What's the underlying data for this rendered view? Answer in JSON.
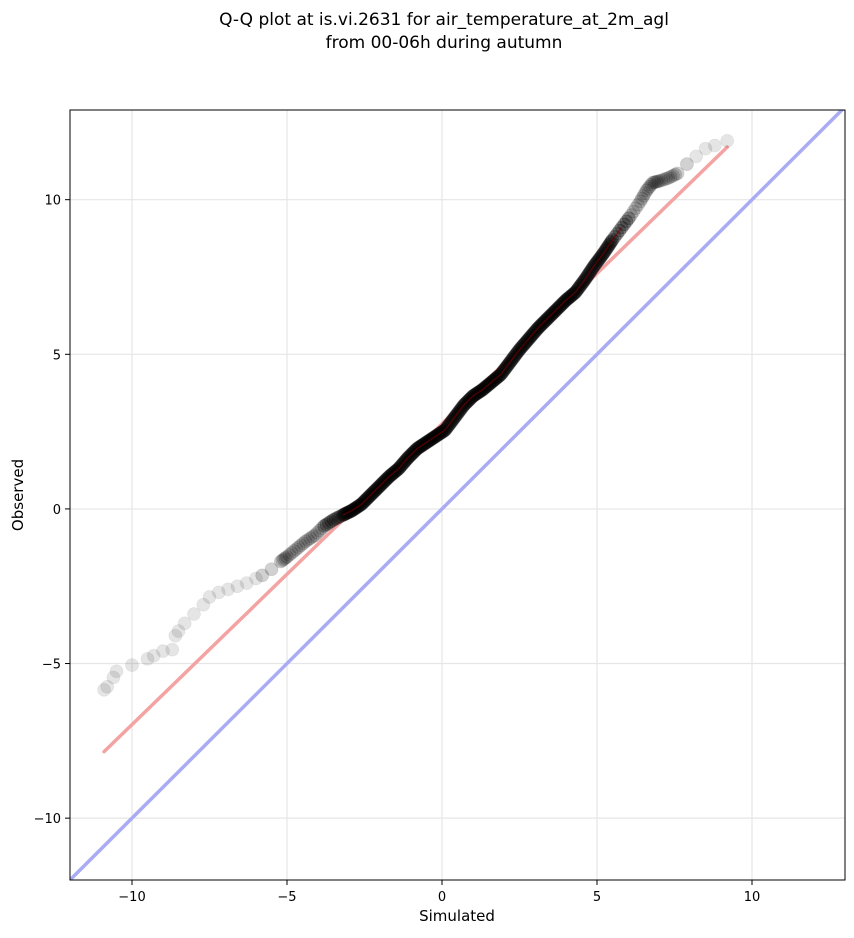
{
  "chart_data": {
    "type": "scatter",
    "title_lines": [
      "Q-Q plot at is.vi.2631 for air_temperature_at_2m_agl",
      "from 00-06h during autumn"
    ],
    "xlabel": "Simulated",
    "ylabel": "Observed",
    "xlim": [
      -12,
      13
    ],
    "ylim": [
      -12,
      12.9
    ],
    "x_ticks": [
      -10,
      -5,
      0,
      5,
      10
    ],
    "x_tick_labels": [
      "−10",
      "−5",
      "0",
      "5",
      "10"
    ],
    "y_ticks": [
      -10,
      -5,
      0,
      5,
      10
    ],
    "y_tick_labels": [
      "−10",
      "−5",
      "0",
      "5",
      "10"
    ],
    "grid": true,
    "colors": {
      "points": "#000000",
      "fit_line": "#f4a3a3",
      "identity_line": "#a9abf4",
      "dense_band": "#7a0000"
    },
    "fit_line": {
      "x": [
        -10.9,
        9.2
      ],
      "y": [
        -7.85,
        11.7
      ]
    },
    "identity_line": {
      "x": [
        -12,
        13
      ],
      "y": [
        -12,
        13
      ]
    },
    "points": {
      "x": [
        -10.9,
        -10.8,
        -10.6,
        -10.5,
        -10.0,
        -9.5,
        -9.3,
        -9.0,
        -8.7,
        -8.6,
        -8.5,
        -8.3,
        -8.0,
        -7.7,
        -7.5,
        -7.2,
        -6.9,
        -6.6,
        -6.3,
        -6.0,
        -5.8,
        -5.5,
        -5.2,
        -5.0,
        -4.7,
        -4.4,
        -4.1,
        -3.8,
        -3.5,
        -3.2,
        -2.9,
        -2.6,
        -2.3,
        -2.0,
        -1.7,
        -1.4,
        -1.1,
        -0.8,
        -0.5,
        -0.2,
        0.1,
        0.4,
        0.7,
        1.0,
        1.3,
        1.6,
        1.9,
        2.2,
        2.5,
        2.8,
        3.1,
        3.4,
        3.7,
        4.0,
        4.3,
        4.6,
        4.9,
        5.2,
        5.5,
        5.8,
        6.1,
        6.4,
        6.6,
        6.8,
        7.0,
        7.3,
        7.6,
        7.9,
        8.2,
        8.5,
        8.8,
        9.2
      ],
      "y": [
        -5.85,
        -5.75,
        -5.45,
        -5.25,
        -5.05,
        -4.85,
        -4.75,
        -4.6,
        -4.55,
        -4.1,
        -3.95,
        -3.7,
        -3.4,
        -3.1,
        -2.85,
        -2.7,
        -2.6,
        -2.5,
        -2.4,
        -2.25,
        -2.15,
        -1.95,
        -1.7,
        -1.55,
        -1.3,
        -1.05,
        -0.85,
        -0.55,
        -0.35,
        -0.2,
        -0.05,
        0.15,
        0.45,
        0.75,
        1.05,
        1.3,
        1.65,
        1.95,
        2.15,
        2.35,
        2.55,
        2.95,
        3.35,
        3.65,
        3.85,
        4.1,
        4.35,
        4.75,
        5.15,
        5.5,
        5.85,
        6.15,
        6.45,
        6.75,
        7.0,
        7.4,
        7.85,
        8.25,
        8.7,
        9.1,
        9.5,
        9.95,
        10.3,
        10.55,
        10.6,
        10.7,
        10.85,
        11.15,
        11.4,
        11.65,
        11.75,
        11.9
      ]
    }
  }
}
